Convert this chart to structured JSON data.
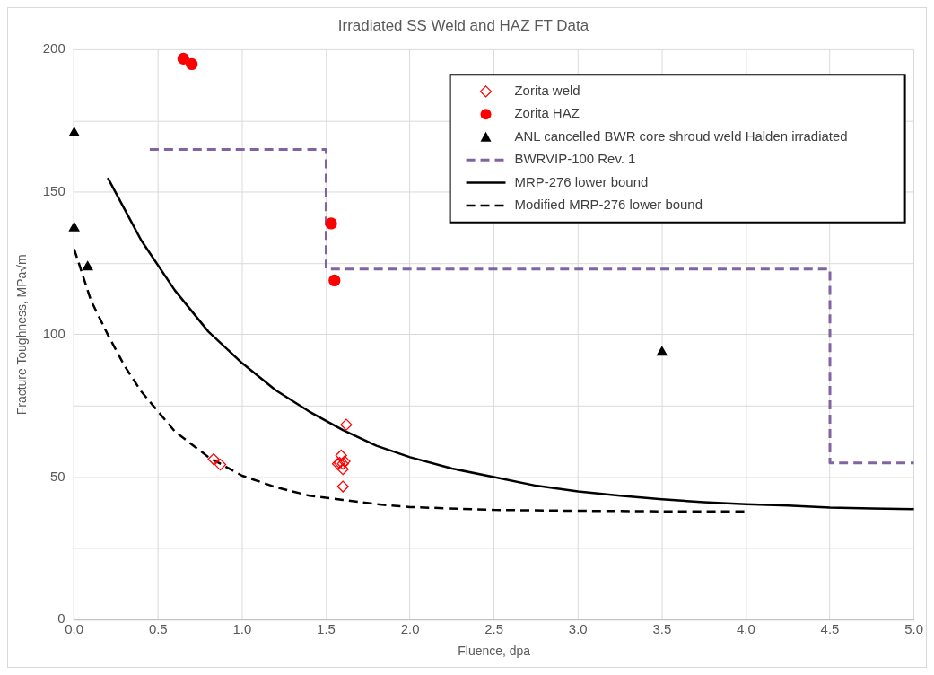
{
  "chart_data": {
    "type": "scatter",
    "title": "Irradiated SS Weld and HAZ FT Data",
    "xlabel": "Fluence, dpa",
    "ylabel": "Fracture Toughness, MPa√m",
    "xlim": [
      0,
      5
    ],
    "xticks": [
      {
        "value": 0,
        "label": "0.0"
      },
      0.5,
      {
        "value": 1,
        "label": "1.0"
      },
      1.5,
      {
        "value": 2,
        "label": "2.0"
      },
      2.5,
      {
        "value": 3,
        "label": "3.0"
      },
      3.5,
      {
        "value": 4,
        "label": "4.0"
      },
      4.5,
      {
        "value": 5,
        "label": "5.0"
      }
    ],
    "ylim": [
      0,
      200
    ],
    "yticks": [
      0,
      {
        "value": 25,
        "label": null
      },
      50,
      {
        "value": 75,
        "label": null
      },
      100,
      {
        "value": 125,
        "label": null
      },
      150,
      {
        "value": 175,
        "label": null
      },
      200
    ],
    "grid": true,
    "legend": "top right",
    "series": [
      {
        "name": "Zorita weld",
        "marker": "diamond",
        "color": "#ff0000",
        "x": [
          0.83,
          0.87,
          1.57,
          1.59,
          1.6,
          1.61,
          1.58,
          1.62,
          1.6,
          1.6
        ],
        "values": [
          56.3,
          54.4,
          54.7,
          57.6,
          54.7,
          55.5,
          55.0,
          68.4,
          46.7,
          52.8
        ]
      },
      {
        "name": "Zorita HAZ",
        "marker": "circle",
        "color": "#ff0000",
        "x": [
          0.65,
          0.7,
          1.53,
          1.55
        ],
        "values": [
          196.8,
          194.9,
          139,
          119
        ]
      },
      {
        "name": "ANL cancelled BWR core shroud weld Halden irradiated",
        "marker": "triangle",
        "color": "#000000",
        "x": [
          0,
          0,
          0.08,
          3.5
        ],
        "values": [
          170.7,
          137.4,
          123.7,
          93.8
        ]
      },
      {
        "name": "BWRVIP-100 Rev. 1",
        "type": "line",
        "line_style": "dashed",
        "color": "#8064a2",
        "x": [
          0.45,
          1.5,
          1.5,
          4.5,
          4.5,
          5
        ],
        "values": [
          165,
          165,
          123,
          123,
          55,
          55
        ]
      },
      {
        "name": "MRP-276 lower bound",
        "type": "line",
        "line_style": "solid",
        "color": "#000000",
        "x": [
          0.2,
          0.4,
          0.6,
          0.8,
          1.0,
          1.2,
          1.4,
          1.6,
          1.8,
          2.0,
          2.25,
          2.5,
          2.75,
          3.0,
          3.25,
          3.5,
          3.75,
          4.0,
          4.25,
          4.5,
          4.75,
          5.0
        ],
        "values": [
          155,
          133,
          115.5,
          101,
          90,
          80.5,
          73,
          66.5,
          61,
          57,
          53,
          50,
          47,
          45,
          43.5,
          42.2,
          41.2,
          40.5,
          40,
          39.3,
          39,
          38.8
        ]
      },
      {
        "name": "Modified MRP-276 lower bound",
        "type": "line",
        "line_style": "dashed",
        "color": "#000000",
        "x": [
          0,
          0.1,
          0.2,
          0.3,
          0.4,
          0.6,
          0.8,
          1.0,
          1.2,
          1.4,
          1.6,
          1.8,
          2.0,
          2.5,
          3.0,
          3.5,
          4.0
        ],
        "values": [
          130,
          112,
          100,
          89,
          80,
          66,
          57,
          50.5,
          46.5,
          43.5,
          42,
          40.5,
          39.5,
          38.5,
          38.2,
          38,
          38
        ]
      }
    ]
  }
}
